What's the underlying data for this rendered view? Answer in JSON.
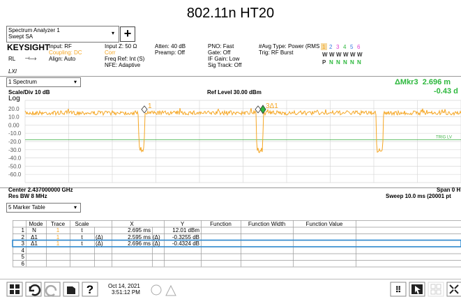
{
  "title": "802.11n HT20",
  "window": {
    "name": "Spectrum Analyzer 1",
    "mode": "Swept SA"
  },
  "status": {
    "brand": "KEYSIGHT",
    "input": "Input: RF",
    "coupling": "Coupling: DC",
    "align": "Align: Auto",
    "rl": "RL",
    "lxi": "LXI",
    "input_z": "Input Z: 50 Ω",
    "corr": "Corr",
    "freq_ref": "Freq Ref: Int (S)",
    "nfe": "NFE: Adaptive",
    "atten": "Atten: 40 dB",
    "preamp": "Preamp: Off",
    "pno": "PNO: Fast",
    "gate": "Gate: Off",
    "if_gain": "IF Gain: Low",
    "sig_track": "Sig Track: Off",
    "avg_type": "#Avg Type: Power (RMS",
    "trig": "Trig: RF Burst",
    "traces": [
      "1",
      "2",
      "3",
      "4",
      "5",
      "6"
    ],
    "trace_types": [
      "W",
      "W",
      "W",
      "W",
      "W",
      "W"
    ],
    "detectors": [
      "P",
      "N",
      "N",
      "N",
      "N",
      "N"
    ]
  },
  "view": {
    "name": "1 Spectrum",
    "marker_readout": "ΔMkr3  2.696 m",
    "marker_delta": "-0.43 d"
  },
  "plot": {
    "scale": "Scale/Div 10 dB",
    "ref_level": "Ref Level 30.00 dBm",
    "log": "Log",
    "yticks": [
      "20.0",
      "10.0",
      "0.00",
      "-10.0",
      "-20.0",
      "-30.0",
      "-40.0",
      "-50.0",
      "-60.0"
    ],
    "trig_label": "TRIG LV",
    "markers": [
      "1",
      "3Δ1"
    ],
    "center": "Center 2.437000000 GHz",
    "span": "Span 0 H",
    "res_bw": "Res BW 8 MHz",
    "sweep": "Sweep 10.0 ms (20001 pt"
  },
  "table": {
    "name": "5 Marker Table",
    "headers": {
      "mode": "Mode",
      "trace": "Trace",
      "scale": "Scale",
      "x": "X",
      "y": "Y",
      "function": "Function",
      "function_width": "Function Width",
      "function_value": "Function Value"
    },
    "rows": [
      {
        "num": "1",
        "mode": "N",
        "trace": "1",
        "scale": "t",
        "x": "2.695 ms",
        "y": "12.01 dBm"
      },
      {
        "num": "2",
        "mode": "Δ1",
        "trace": "1",
        "scale": "t",
        "x_ref": "(Δ)",
        "x": "2.595 ms",
        "y_ref": "(Δ)",
        "y": "-0.3255 dB"
      },
      {
        "num": "3",
        "mode": "Δ1",
        "trace": "1",
        "scale": "t",
        "x_ref": "(Δ)",
        "x": "2.696 ms",
        "y_ref": "(Δ)",
        "y": "-0.4324 dB"
      },
      {
        "num": "4"
      },
      {
        "num": "5"
      },
      {
        "num": "6"
      }
    ]
  },
  "toolbar": {
    "date": "Oct 14, 2021",
    "time": "3:51:12 PM"
  }
}
